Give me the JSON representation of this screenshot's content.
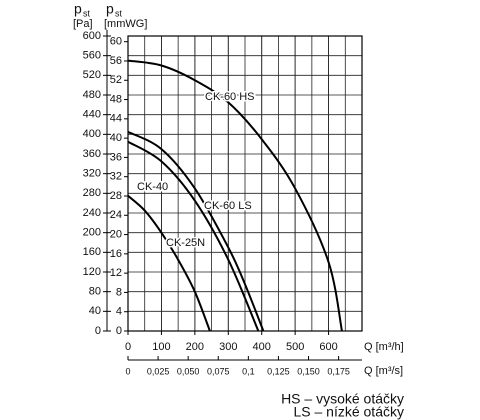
{
  "chart_data": {
    "type": "line",
    "y_label": {
      "symbol": "p",
      "subscript": "st",
      "unit": "[Pa]"
    },
    "y2_label": {
      "symbol": "p",
      "subscript": "st",
      "unit": "[mmWG]"
    },
    "x_label": "Q [m³/h]",
    "x2_label": "Q [m³/s]",
    "xlim": [
      0,
      700
    ],
    "xticks": [
      0,
      100,
      200,
      300,
      400,
      500,
      600
    ],
    "x2lim": [
      0,
      0.19444
    ],
    "x2ticks": [
      0,
      {
        "value": 0.025,
        "label": "0,025"
      },
      {
        "value": 0.05,
        "label": "0,050"
      },
      {
        "value": 0.075,
        "label": "0,075"
      },
      {
        "value": 0.1,
        "label": "0,1"
      },
      {
        "value": 0.125,
        "label": "0,125"
      },
      {
        "value": 0.15,
        "label": "0,150"
      },
      {
        "value": 0.175,
        "label": "0,175"
      }
    ],
    "ylim": [
      0,
      600
    ],
    "yticks": [
      0,
      40,
      80,
      120,
      160,
      200,
      240,
      280,
      320,
      360,
      400,
      440,
      480,
      520,
      560,
      600
    ],
    "y2lim": [
      0,
      61.18
    ],
    "y2ticks": [
      0,
      4,
      8,
      12,
      16,
      20,
      24,
      28,
      32,
      36,
      40,
      44,
      48,
      52,
      56,
      60
    ],
    "grid": true,
    "series": [
      {
        "name": "CK-60 HS",
        "color": "#000000",
        "x": [
          0,
          100,
          200,
          300,
          400,
          500,
          600,
          640
        ],
        "values": [
          550,
          540,
          510,
          465,
          390,
          290,
          140,
          0
        ]
      },
      {
        "name": "CK-60 LS",
        "color": "#000000",
        "x": [
          0,
          100,
          200,
          300,
          350,
          405
        ],
        "values": [
          405,
          370,
          290,
          170,
          95,
          0
        ]
      },
      {
        "name": "CK-40",
        "color": "#000000",
        "x": [
          0,
          100,
          200,
          300,
          390
        ],
        "values": [
          385,
          345,
          265,
          145,
          0
        ]
      },
      {
        "name": "CK-25N",
        "color": "#000000",
        "x": [
          0,
          50,
          100,
          150,
          200,
          245
        ],
        "values": [
          275,
          245,
          200,
          145,
          80,
          0
        ]
      }
    ],
    "notes": [
      "HS – vysoké otáčky",
      "LS – nízké otáčky"
    ]
  }
}
